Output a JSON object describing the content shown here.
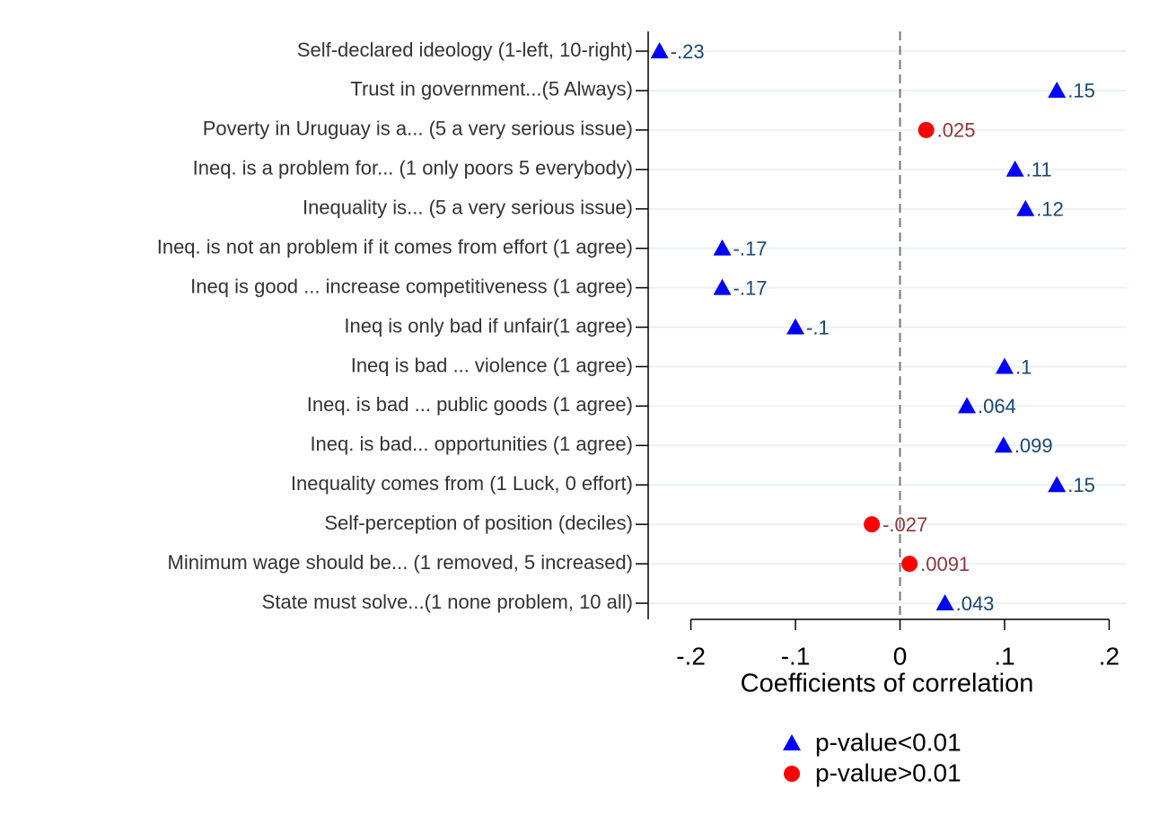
{
  "chart_data": {
    "type": "dot",
    "xlabel": "Coefficients of correlation",
    "categories": [
      "Self-declared ideology (1-left, 10-right)",
      "Trust in  government...(5 Always)",
      "Poverty in Uruguay is a... (5 a very serious issue)",
      "Ineq. is a problem for... (1 only poors 5 everybody)",
      "Inequality is... (5 a very serious issue)",
      "Ineq. is not an problem if it comes from effort (1 agree)",
      "Ineq is good ... increase competitiveness (1 agree)",
      "Ineq is only bad if unfair(1 agree)",
      "Ineq is bad ...  violence (1 agree)",
      "Ineq. is bad ... public goods (1 agree)",
      "Ineq. is bad... opportunities (1 agree)",
      "Inequality comes from (1 Luck, 0 effort)",
      "Self-perception of position (deciles)",
      "Minimum wage should be... (1 removed, 5 increased)",
      "State must solve...(1 none problem, 10 all)"
    ],
    "series": [
      {
        "name": "p-value<0.01",
        "marker": "triangle",
        "color": "#0000ff",
        "label_color": "#1a476f",
        "values": [
          -0.23,
          0.15,
          null,
          0.11,
          0.12,
          -0.17,
          -0.17,
          -0.1,
          0.1,
          0.064,
          0.099,
          0.15,
          null,
          null,
          0.043
        ],
        "value_labels": [
          "-.23",
          ".15",
          null,
          ".11",
          ".12",
          "-.17",
          "-.17",
          "-.1",
          ".1",
          ".064",
          ".099",
          ".15",
          null,
          null,
          ".043"
        ]
      },
      {
        "name": "p-value>0.01",
        "marker": "circle",
        "color": "#ff0000",
        "label_color": "#90353b",
        "values": [
          null,
          null,
          0.025,
          null,
          null,
          null,
          null,
          null,
          null,
          null,
          null,
          null,
          -0.027,
          0.0091,
          null
        ],
        "value_labels": [
          null,
          null,
          ".025",
          null,
          null,
          null,
          null,
          null,
          null,
          null,
          null,
          null,
          "-.027",
          ".0091",
          null
        ]
      }
    ],
    "xlim": [
      -0.24,
      0.22
    ],
    "xticks": [
      {
        "value": -0.2,
        "label": "-.2"
      },
      {
        "value": -0.1,
        "label": "-.1"
      },
      0,
      {
        "value": 0.1,
        "label": ".1"
      },
      {
        "value": 0.2,
        "label": ".2"
      }
    ],
    "reference_line": 0,
    "grid": true
  }
}
